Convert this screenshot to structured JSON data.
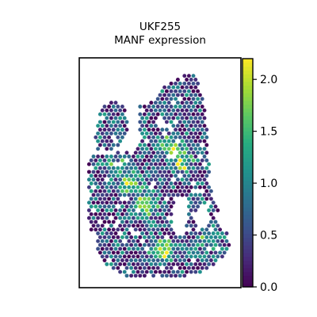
{
  "chart_data": {
    "type": "scatter",
    "title": "UKF255",
    "subtitle": "MANF expression",
    "xlabel": "",
    "ylabel": "",
    "colorbar": {
      "colormap": "viridis",
      "range": [
        0.0,
        2.2
      ],
      "ticks": [
        "0.0",
        "0.5",
        "1.0",
        "1.5",
        "2.0"
      ],
      "tick_values": [
        0.0,
        0.5,
        1.0,
        1.5,
        2.0
      ]
    },
    "colors": {
      "frame": "#000000",
      "low": "#440154",
      "high": "#fde725"
    },
    "grid": false,
    "legend": "right"
  }
}
